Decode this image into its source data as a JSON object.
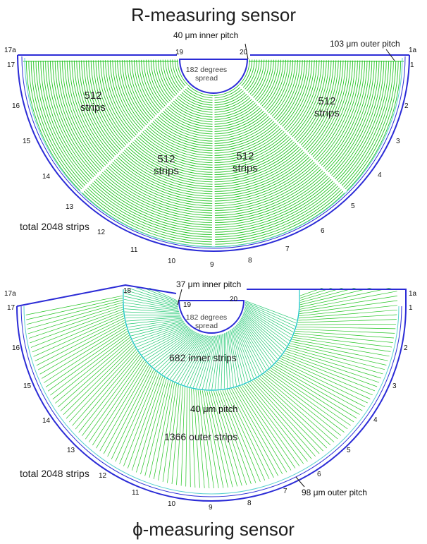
{
  "r_sensor": {
    "title": "R-measuring sensor",
    "inner_pitch": "40 μm inner pitch",
    "outer_pitch": "103 μm outer pitch",
    "spread": "182 degrees spread",
    "sectors": [
      {
        "count": "512",
        "unit": "strips"
      },
      {
        "count": "512",
        "unit": "strips"
      },
      {
        "count": "512",
        "unit": "strips"
      },
      {
        "count": "512",
        "unit": "strips"
      }
    ],
    "total": "total 2048 strips",
    "edge_numbers": [
      "1",
      "2",
      "3",
      "4",
      "5",
      "6",
      "7",
      "8",
      "9",
      "10",
      "11",
      "12",
      "13",
      "14",
      "15",
      "16",
      "17",
      "19",
      "20",
      "1a",
      "17a"
    ]
  },
  "phi_sensor": {
    "title": "ϕ-measuring sensor",
    "inner_pitch": "37 μm inner pitch",
    "spread": "182 degrees spread",
    "inner_strips": "682 inner strips",
    "mid_pitch": "40 μm pitch",
    "outer_strips": "1366 outer strips",
    "outer_pitch": "98 μm outer pitch",
    "total": "total 2048 strips",
    "edge_numbers": [
      "1",
      "2",
      "3",
      "4",
      "5",
      "6",
      "7",
      "8",
      "9",
      "10",
      "11",
      "12",
      "13",
      "14",
      "15",
      "16",
      "17",
      "18",
      "19",
      "20",
      "1a",
      "17a"
    ]
  },
  "colors": {
    "strip": "#22c422",
    "border": "#2b2bd6",
    "phi_inner_strip": "#1fc870",
    "phi_boundary": "#1fc8c8"
  }
}
